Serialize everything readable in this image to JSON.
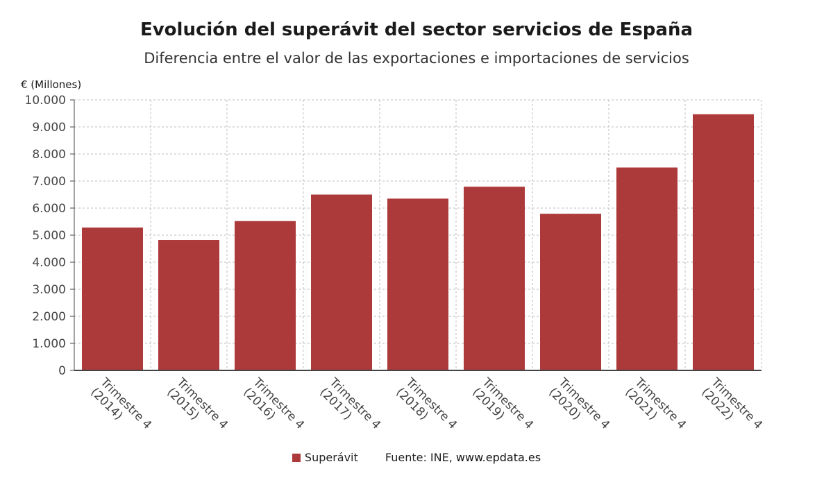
{
  "title": "Evolución del superávit del sector servicios de España",
  "subtitle": "Diferencia entre el valor de las exportaciones e importaciones de servicios",
  "unit_label": "€ (Millones)",
  "legend": {
    "series_name": "Superávit",
    "source_label": "Fuente: INE, ",
    "source_url": "www.epdata.es"
  },
  "colors": {
    "bar": "#ad3a3a",
    "grid": "#bdbdbd",
    "axis": "#444444",
    "text": "#444444"
  },
  "chart_data": {
    "type": "bar",
    "title": "Evolución del superávit del sector servicios de España",
    "subtitle": "Diferencia entre el valor de las exportaciones e importaciones de servicios",
    "ylabel": "€ (Millones)",
    "xlabel": "",
    "ylim": [
      0,
      10000
    ],
    "yticks": [
      0,
      1000,
      2000,
      3000,
      4000,
      5000,
      6000,
      7000,
      8000,
      9000,
      10000
    ],
    "ytick_labels": [
      "0",
      "1.000",
      "2.000",
      "3.000",
      "4.000",
      "5.000",
      "6.000",
      "7.000",
      "8.000",
      "9.000",
      "10.000"
    ],
    "grid": true,
    "legend_position": "bottom",
    "categories": [
      [
        "Trimestre 4",
        "(2014)"
      ],
      [
        "Trimestre 4",
        "(2015)"
      ],
      [
        "Trimestre 4",
        "(2016)"
      ],
      [
        "Trimestre 4",
        "(2017)"
      ],
      [
        "Trimestre 4",
        "(2018)"
      ],
      [
        "Trimestre 4",
        "(2019)"
      ],
      [
        "Trimestre 4",
        "(2020)"
      ],
      [
        "Trimestre 4",
        "(2021)"
      ],
      [
        "Trimestre 4",
        "(2022)"
      ]
    ],
    "series": [
      {
        "name": "Superávit",
        "values": [
          5280,
          4820,
          5520,
          6500,
          6350,
          6790,
          5790,
          7500,
          9470
        ]
      }
    ]
  }
}
